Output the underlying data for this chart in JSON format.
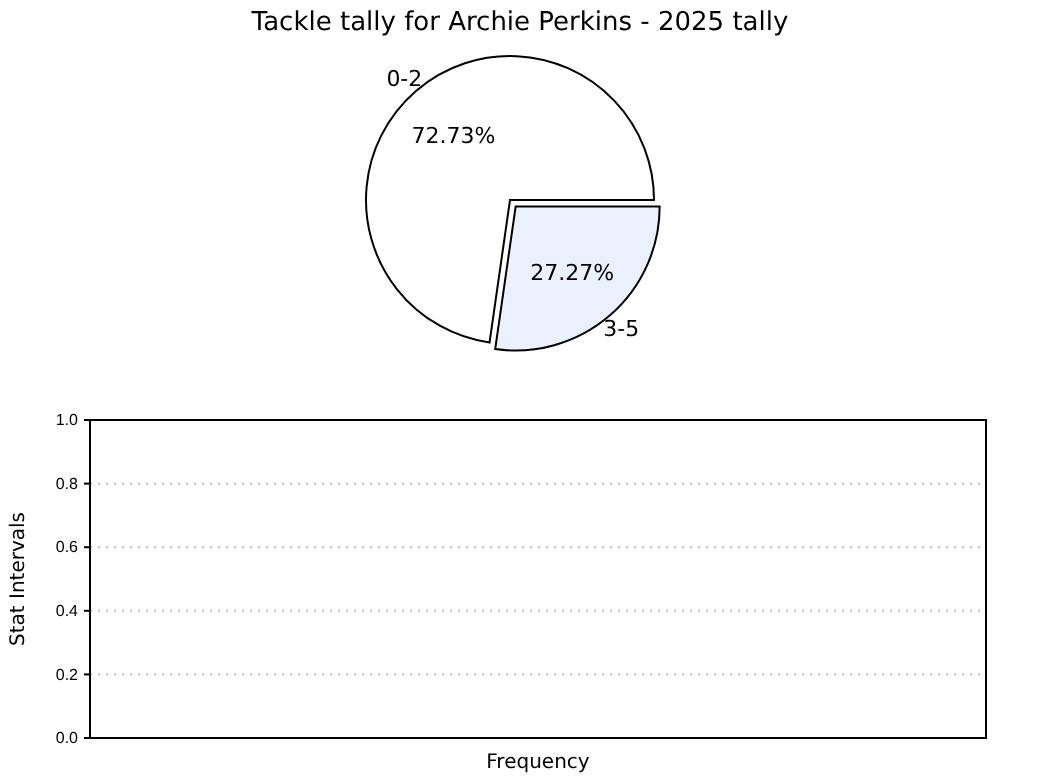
{
  "chart_data": [
    {
      "type": "pie",
      "title": "Tackle tally for Archie Perkins - 2025 tally",
      "categories": [
        "0-2",
        "3-5"
      ],
      "values": [
        72.73,
        27.27
      ],
      "colors": [
        "#ffffff",
        "#eaf0fe"
      ],
      "value_labels": [
        "72.73%",
        "27.27%"
      ]
    },
    {
      "type": "bar",
      "categories": [
        null
      ],
      "values": [
        null
      ],
      "xlabel": "Frequency",
      "ylabel": "Stat Intervals",
      "ylim": [
        0,
        1
      ],
      "yticks": [
        {
          "value": 0,
          "label": "0.0"
        },
        {
          "value": 0.2,
          "label": "0.2"
        },
        {
          "value": 0.4,
          "label": "0.4"
        },
        {
          "value": 0.6,
          "label": "0.6"
        },
        {
          "value": 0.8,
          "label": "0.8"
        },
        {
          "value": 1,
          "label": "1.0"
        }
      ],
      "grid": "y"
    }
  ]
}
